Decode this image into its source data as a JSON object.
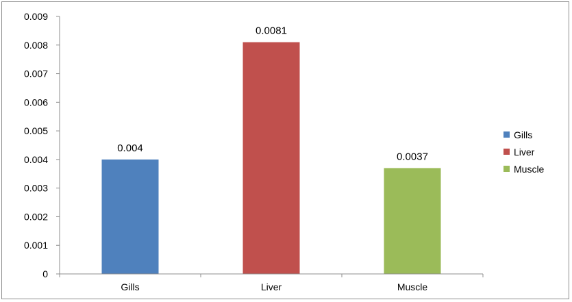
{
  "chart_data": {
    "type": "bar",
    "categories": [
      "Gills",
      "Liver",
      "Muscle"
    ],
    "values": [
      0.004,
      0.0081,
      0.0037
    ],
    "data_labels": [
      "0.004",
      "0.0081",
      "0.0037"
    ],
    "colors": [
      "#4f81bd",
      "#c0504d",
      "#9bbb59"
    ],
    "title": "",
    "xlabel": "",
    "ylabel": "",
    "ylim": [
      0,
      0.009
    ],
    "yticks": [
      0,
      0.001,
      0.002,
      0.003,
      0.004,
      0.005,
      0.006,
      0.007,
      0.008,
      0.009
    ],
    "ytick_labels": [
      "0",
      "0.001",
      "0.002",
      "0.003",
      "0.004",
      "0.005",
      "0.006",
      "0.007",
      "0.008",
      "0.009"
    ],
    "grid": false,
    "legend": {
      "placement": "right",
      "entries": [
        "Gills",
        "Liver",
        "Muscle"
      ]
    }
  }
}
